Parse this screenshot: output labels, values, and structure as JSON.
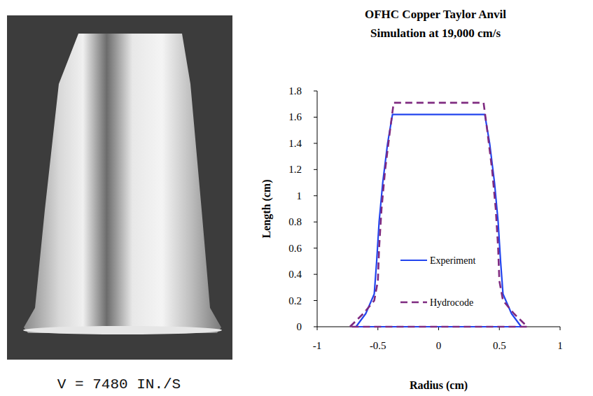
{
  "chart_data": {
    "type": "line",
    "title": "OFHC Copper Taylor Anvil",
    "subtitle": "Simulation at 19,000 cm/s",
    "x_label": "Radius (cm)",
    "y_label": "Length (cm)",
    "xlim": [
      -1,
      1
    ],
    "ylim": [
      0,
      1.8
    ],
    "xticks": [
      -1,
      -0.5,
      0,
      0.5,
      1
    ],
    "yticks": [
      0,
      0.2,
      0.4,
      0.6,
      0.8,
      1,
      1.2,
      1.4,
      1.6,
      1.8
    ],
    "grid": false,
    "legend": "center",
    "series": [
      {
        "name": "Experiment",
        "color": "#2244ee",
        "line_style": "solid",
        "x": [
          -0.68,
          -0.6,
          -0.53,
          -0.51,
          -0.49,
          -0.46,
          -0.42,
          -0.38,
          0.38,
          0.42,
          0.46,
          0.49,
          0.51,
          0.53,
          0.6,
          0.68,
          -0.68
        ],
        "values": [
          0,
          0.1,
          0.25,
          0.5,
          0.8,
          1.1,
          1.4,
          1.62,
          1.62,
          1.4,
          1.1,
          0.8,
          0.5,
          0.25,
          0.1,
          0,
          0
        ]
      },
      {
        "name": "Hydrocode",
        "color": "#7e2a80",
        "line_style": "dashed",
        "x": [
          -0.73,
          -0.62,
          -0.53,
          -0.5,
          -0.49,
          -0.47,
          -0.44,
          -0.4,
          -0.37,
          0.37,
          0.4,
          0.44,
          0.47,
          0.49,
          0.5,
          0.53,
          0.62,
          0.73,
          -0.73
        ],
        "values": [
          0,
          0.1,
          0.2,
          0.35,
          0.6,
          0.9,
          1.2,
          1.5,
          1.71,
          1.71,
          1.5,
          1.2,
          0.9,
          0.6,
          0.35,
          0.2,
          0.1,
          0,
          0
        ]
      }
    ]
  },
  "photo": {
    "caption": "V = 7480 IN./S"
  }
}
